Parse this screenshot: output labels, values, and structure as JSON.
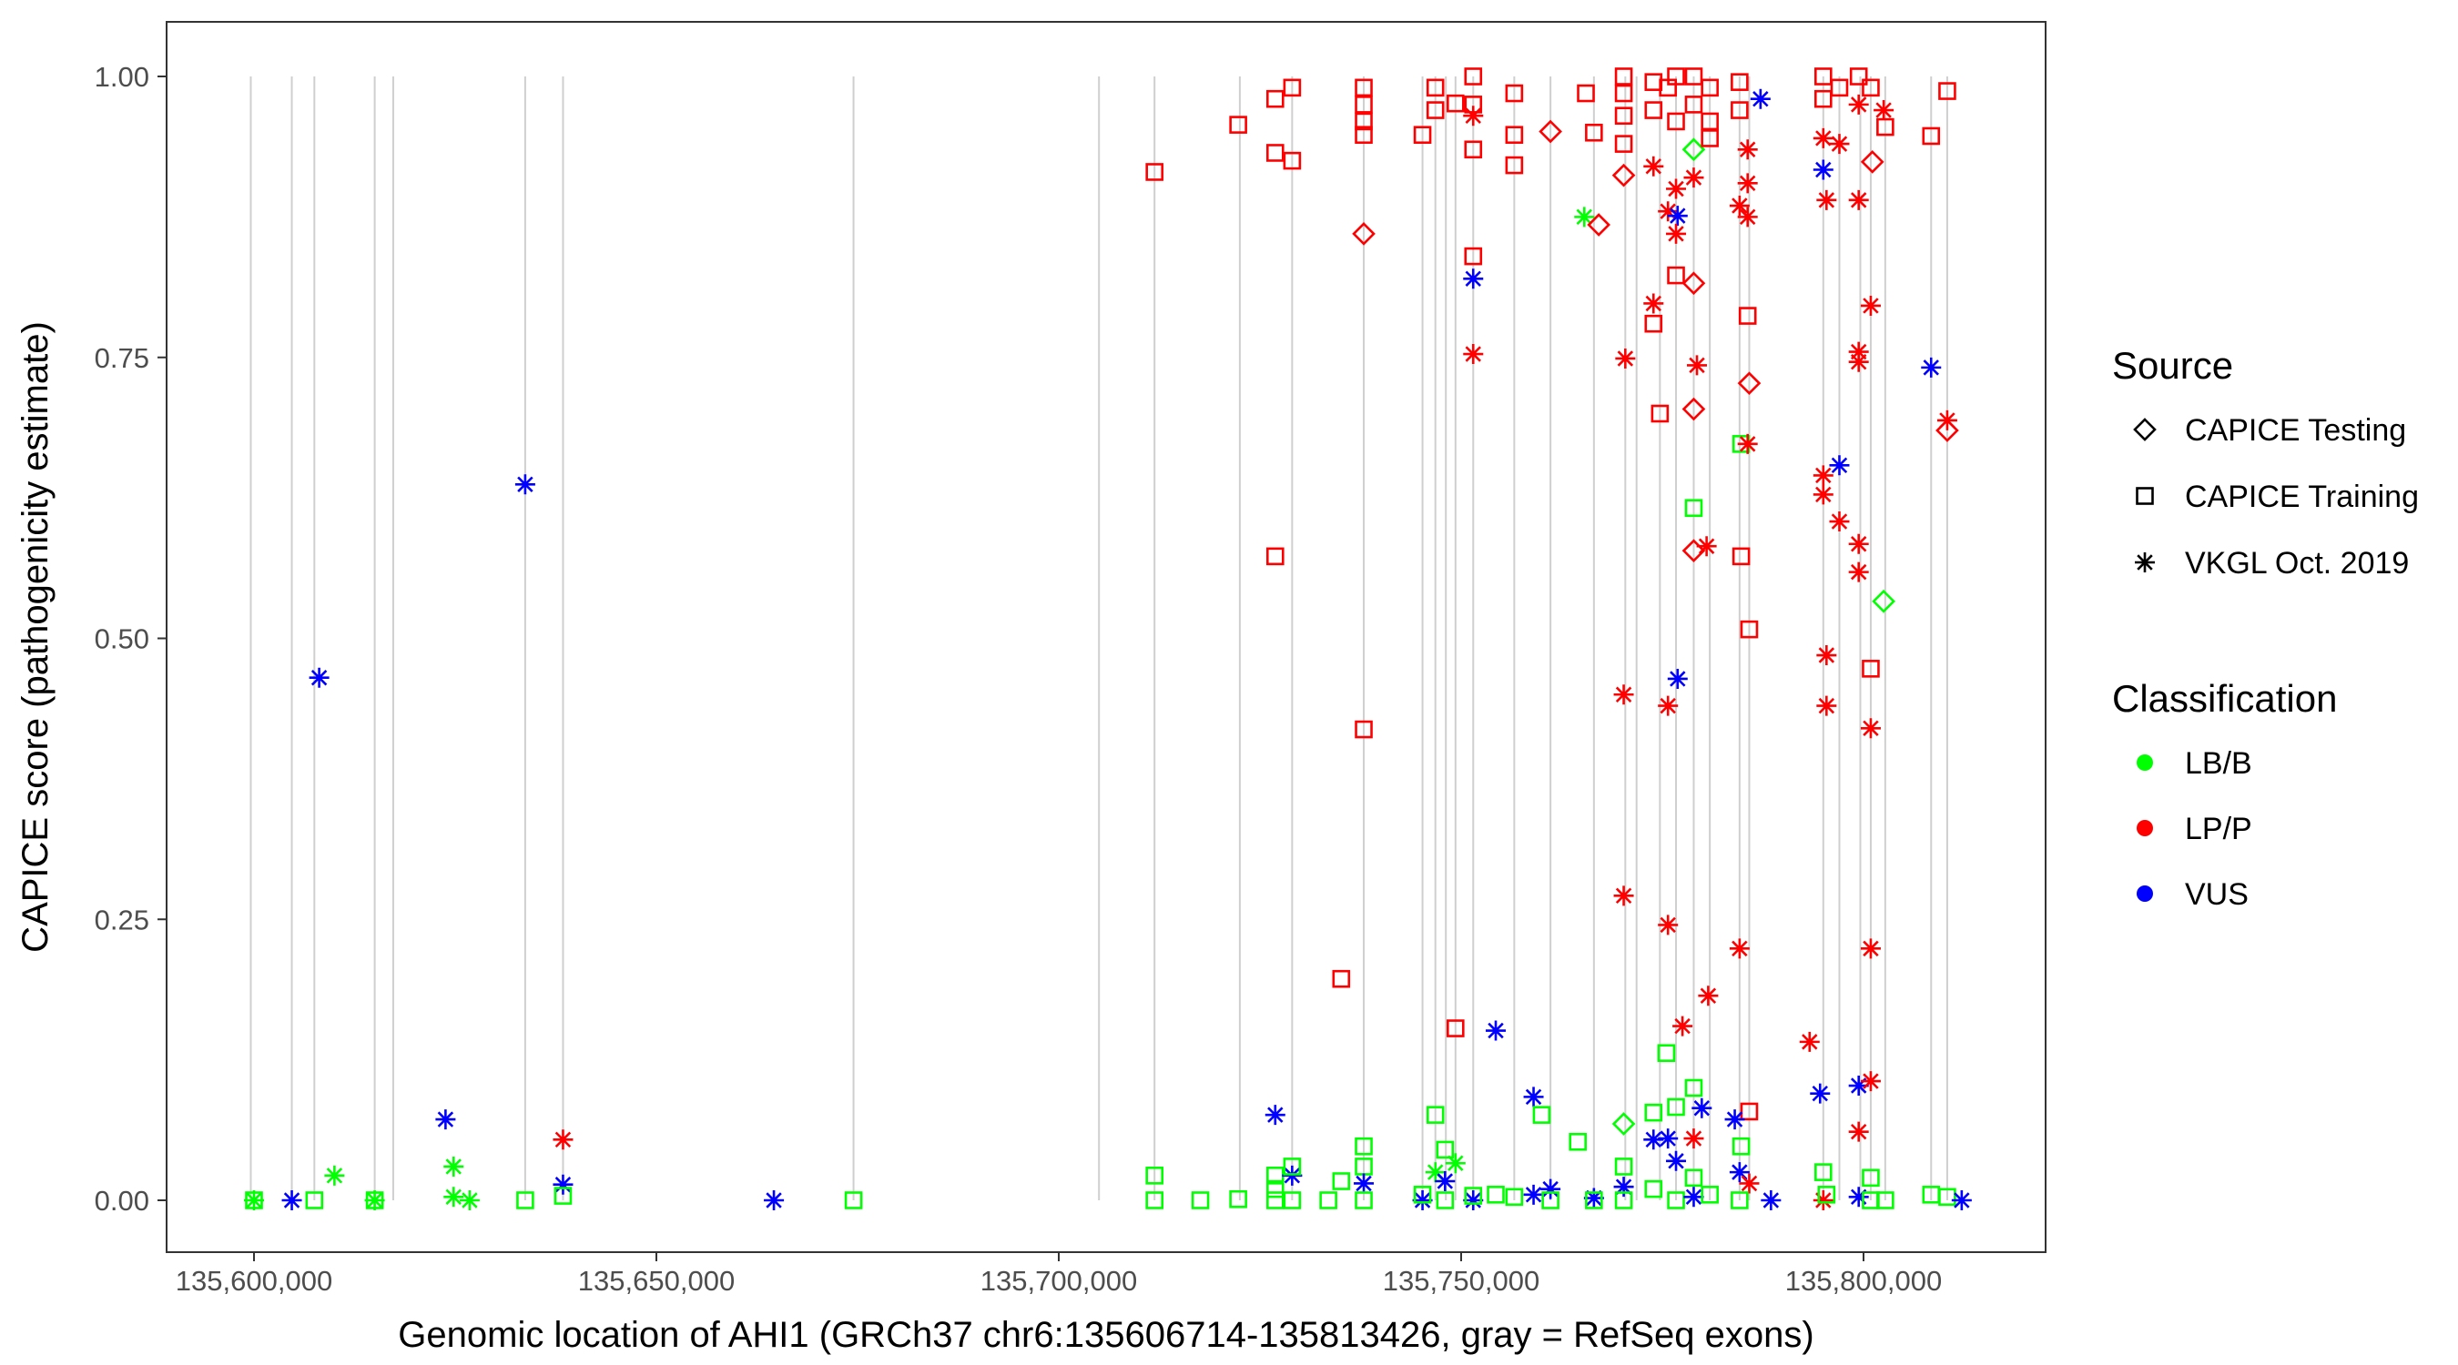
{
  "chart_data": {
    "type": "scatter",
    "xlabel": "Genomic location of AHI1 (GRCh37 chr6:135606714-135813426, gray = RefSeq exons)",
    "ylabel": "CAPICE score (pathogenicity estimate)",
    "xlim": [
      135593000,
      135817000
    ],
    "ylim": [
      -0.046,
      1.046
    ],
    "xticks": [
      135600000,
      135650000,
      135700000,
      135750000,
      135800000
    ],
    "xtick_labels": [
      "135,600,000",
      "135,650,000",
      "135,700,000",
      "135,750,000",
      "135,800,000"
    ],
    "yticks": [
      0,
      0.25,
      0.5,
      0.75,
      1.0
    ],
    "ytick_labels": [
      "0.00",
      "0.25",
      "0.50",
      "0.75",
      "1.00"
    ],
    "grid": false,
    "legend_placement": "right",
    "legend": {
      "source_title": "Source",
      "sources": [
        {
          "key": "Testing",
          "label": "CAPICE Testing",
          "shape": "diamond"
        },
        {
          "key": "Training",
          "label": "CAPICE Training",
          "shape": "square"
        },
        {
          "key": "VKGL",
          "label": "VKGL Oct. 2019",
          "shape": "asterisk"
        }
      ],
      "class_title": "Classification",
      "classes": [
        {
          "key": "B",
          "label": "LB/B",
          "color": "#00ff00"
        },
        {
          "key": "P",
          "label": "LP/P",
          "color": "#ff0000"
        },
        {
          "key": "U",
          "label": "VUS",
          "color": "#0000ff"
        }
      ]
    },
    "exons": [
      135599600,
      135604700,
      135607500,
      135615000,
      135617300,
      135633700,
      135638400,
      135674500,
      135705000,
      135711900,
      135722500,
      135729000,
      135737900,
      135745200,
      135746800,
      135748100,
      135749300,
      135751500,
      135756600,
      135761100,
      135766500,
      135770400,
      135771800,
      135774700,
      135776700,
      135778900,
      135780900,
      135784600,
      135785800,
      135795000,
      135797000,
      135799600,
      135800900,
      135802700,
      135808400,
      135810400
    ],
    "points_format": [
      "position",
      "score",
      "source",
      "classification"
    ],
    "points": [
      [
        135600000,
        0,
        "Training",
        "B"
      ],
      [
        135600000,
        0,
        "VKGL",
        "B"
      ],
      [
        135604700,
        0,
        "VKGL",
        "U"
      ],
      [
        135607500,
        0,
        "Training",
        "B"
      ],
      [
        135608100,
        0.465,
        "VKGL",
        "U"
      ],
      [
        135610000,
        0.022,
        "VKGL",
        "B"
      ],
      [
        135615000,
        0,
        "Training",
        "B"
      ],
      [
        135615000,
        0,
        "VKGL",
        "B"
      ],
      [
        135623800,
        0.072,
        "VKGL",
        "U"
      ],
      [
        135624800,
        0.03,
        "VKGL",
        "B"
      ],
      [
        135624800,
        0.003,
        "VKGL",
        "B"
      ],
      [
        135626800,
        0,
        "VKGL",
        "B"
      ],
      [
        135633700,
        0.637,
        "VKGL",
        "U"
      ],
      [
        135633700,
        0,
        "Training",
        "B"
      ],
      [
        135638400,
        0.054,
        "VKGL",
        "P"
      ],
      [
        135638400,
        0.014,
        "VKGL",
        "U"
      ],
      [
        135638400,
        0.004,
        "Training",
        "B"
      ],
      [
        135664600,
        0,
        "VKGL",
        "U"
      ],
      [
        135674500,
        0,
        "Training",
        "B"
      ],
      [
        135711900,
        0.915,
        "Training",
        "P"
      ],
      [
        135711900,
        0.022,
        "Training",
        "B"
      ],
      [
        135711900,
        0,
        "Training",
        "B"
      ],
      [
        135717600,
        0,
        "Training",
        "B"
      ],
      [
        135722300,
        0.957,
        "Training",
        "P"
      ],
      [
        135722300,
        0.001,
        "Training",
        "B"
      ],
      [
        135726900,
        0.98,
        "Training",
        "P"
      ],
      [
        135726900,
        0.932,
        "Training",
        "P"
      ],
      [
        135726900,
        0.573,
        "Training",
        "P"
      ],
      [
        135726900,
        0.076,
        "VKGL",
        "U"
      ],
      [
        135726900,
        0.022,
        "Training",
        "B"
      ],
      [
        135726900,
        0.01,
        "Training",
        "B"
      ],
      [
        135726900,
        0,
        "Training",
        "B"
      ],
      [
        135729000,
        0.99,
        "Training",
        "P"
      ],
      [
        135729000,
        0.925,
        "Training",
        "P"
      ],
      [
        135729000,
        0.022,
        "VKGL",
        "U"
      ],
      [
        135729000,
        0.03,
        "Training",
        "B"
      ],
      [
        135729000,
        0,
        "Training",
        "B"
      ],
      [
        135735100,
        0.197,
        "Training",
        "P"
      ],
      [
        135735100,
        0.017,
        "Training",
        "B"
      ],
      [
        135733500,
        0,
        "Training",
        "B"
      ],
      [
        135737900,
        0.86,
        "Testing",
        "P"
      ],
      [
        135737900,
        0.99,
        "Training",
        "P"
      ],
      [
        135737900,
        0.975,
        "Training",
        "P"
      ],
      [
        135737900,
        0.96,
        "Training",
        "P"
      ],
      [
        135737900,
        0.948,
        "Training",
        "P"
      ],
      [
        135737900,
        0.419,
        "Training",
        "P"
      ],
      [
        135737900,
        0.048,
        "Training",
        "B"
      ],
      [
        135737900,
        0.03,
        "Training",
        "B"
      ],
      [
        135737900,
        0.015,
        "VKGL",
        "U"
      ],
      [
        135737900,
        0,
        "Training",
        "B"
      ],
      [
        135745200,
        0.948,
        "Training",
        "P"
      ],
      [
        135745200,
        0,
        "VKGL",
        "U"
      ],
      [
        135745200,
        0.005,
        "Training",
        "B"
      ],
      [
        135746800,
        0.076,
        "Training",
        "B"
      ],
      [
        135746800,
        0.025,
        "VKGL",
        "B"
      ],
      [
        135746800,
        0.99,
        "Training",
        "P"
      ],
      [
        135746800,
        0.97,
        "Training",
        "P"
      ],
      [
        135748000,
        0.045,
        "Training",
        "B"
      ],
      [
        135748000,
        0.017,
        "VKGL",
        "U"
      ],
      [
        135748000,
        0,
        "Training",
        "B"
      ],
      [
        135749300,
        0.153,
        "Training",
        "P"
      ],
      [
        135749300,
        0.033,
        "VKGL",
        "B"
      ],
      [
        135749300,
        0.976,
        "Training",
        "P"
      ],
      [
        135751500,
        0.82,
        "VKGL",
        "U"
      ],
      [
        135751500,
        0.753,
        "VKGL",
        "P"
      ],
      [
        135751500,
        0.84,
        "Training",
        "P"
      ],
      [
        135751500,
        0.935,
        "Training",
        "P"
      ],
      [
        135751500,
        1.0,
        "Training",
        "P"
      ],
      [
        135751500,
        0.975,
        "Training",
        "P"
      ],
      [
        135751500,
        0.965,
        "VKGL",
        "P"
      ],
      [
        135751500,
        0,
        "VKGL",
        "U"
      ],
      [
        135751500,
        0.004,
        "Training",
        "B"
      ],
      [
        135754300,
        0.151,
        "VKGL",
        "U"
      ],
      [
        135754300,
        0.005,
        "Training",
        "B"
      ],
      [
        135756600,
        0.921,
        "Training",
        "P"
      ],
      [
        135756600,
        0.948,
        "Training",
        "P"
      ],
      [
        135756600,
        0.985,
        "Training",
        "P"
      ],
      [
        135756600,
        0.003,
        "Training",
        "B"
      ],
      [
        135759000,
        0.092,
        "VKGL",
        "U"
      ],
      [
        135760000,
        0.076,
        "Training",
        "B"
      ],
      [
        135759000,
        0.005,
        "VKGL",
        "U"
      ],
      [
        135761100,
        0.951,
        "Testing",
        "P"
      ],
      [
        135761100,
        0.01,
        "VKGL",
        "U"
      ],
      [
        135761100,
        0,
        "Training",
        "B"
      ],
      [
        135765300,
        0.875,
        "VKGL",
        "B"
      ],
      [
        135767100,
        0.868,
        "Testing",
        "P"
      ],
      [
        135766500,
        0.95,
        "Training",
        "P"
      ],
      [
        135765500,
        0.985,
        "Training",
        "P"
      ],
      [
        135764500,
        0.052,
        "Training",
        "B"
      ],
      [
        135766500,
        0.002,
        "VKGL",
        "U"
      ],
      [
        135766500,
        0,
        "Training",
        "B"
      ],
      [
        135770200,
        0.912,
        "Testing",
        "P"
      ],
      [
        135770400,
        0.749,
        "VKGL",
        "P"
      ],
      [
        135770200,
        0.45,
        "VKGL",
        "P"
      ],
      [
        135770200,
        0.271,
        "VKGL",
        "P"
      ],
      [
        135770200,
        0.068,
        "Testing",
        "B"
      ],
      [
        135770200,
        1.0,
        "Training",
        "P"
      ],
      [
        135770200,
        0.985,
        "Training",
        "P"
      ],
      [
        135770200,
        0.965,
        "Training",
        "P"
      ],
      [
        135770200,
        0.94,
        "Training",
        "P"
      ],
      [
        135770200,
        0.03,
        "Training",
        "B"
      ],
      [
        135770200,
        0.012,
        "VKGL",
        "U"
      ],
      [
        135770200,
        0,
        "Training",
        "B"
      ],
      [
        135773900,
        0.798,
        "VKGL",
        "P"
      ],
      [
        135773900,
        0.78,
        "Training",
        "P"
      ],
      [
        135774700,
        0.7,
        "Training",
        "P"
      ],
      [
        135773900,
        0.054,
        "VKGL",
        "U"
      ],
      [
        135775500,
        0.131,
        "Training",
        "B"
      ],
      [
        135773900,
        0.995,
        "Training",
        "P"
      ],
      [
        135773900,
        0.97,
        "Training",
        "P"
      ],
      [
        135773900,
        0.92,
        "VKGL",
        "P"
      ],
      [
        135773900,
        0.078,
        "Training",
        "B"
      ],
      [
        135773900,
        0.01,
        "Training",
        "B"
      ],
      [
        135775700,
        0.44,
        "VKGL",
        "P"
      ],
      [
        135775700,
        0.245,
        "VKGL",
        "P"
      ],
      [
        135775700,
        0.055,
        "VKGL",
        "U"
      ],
      [
        135775700,
        0.88,
        "VKGL",
        "P"
      ],
      [
        135775700,
        0.99,
        "Training",
        "P"
      ],
      [
        135776900,
        0.464,
        "VKGL",
        "U"
      ],
      [
        135776900,
        0.876,
        "VKGL",
        "U"
      ],
      [
        135776700,
        0.823,
        "Training",
        "P"
      ],
      [
        135776700,
        0.86,
        "VKGL",
        "P"
      ],
      [
        135776700,
        0.9,
        "VKGL",
        "P"
      ],
      [
        135776700,
        0.96,
        "Training",
        "P"
      ],
      [
        135776700,
        1.0,
        "Training",
        "P"
      ],
      [
        135776700,
        0.083,
        "Training",
        "B"
      ],
      [
        135776700,
        0.035,
        "VKGL",
        "U"
      ],
      [
        135776700,
        0,
        "Training",
        "B"
      ],
      [
        135778900,
        0.816,
        "Testing",
        "P"
      ],
      [
        135778900,
        0.704,
        "Testing",
        "P"
      ],
      [
        135778900,
        0.616,
        "Training",
        "B"
      ],
      [
        135778900,
        0.578,
        "Testing",
        "P"
      ],
      [
        135779300,
        0.743,
        "VKGL",
        "P"
      ],
      [
        135777500,
        0.155,
        "VKGL",
        "P"
      ],
      [
        135780700,
        0.182,
        "VKGL",
        "P"
      ],
      [
        135778900,
        0.055,
        "VKGL",
        "P"
      ],
      [
        135779900,
        0.082,
        "VKGL",
        "U"
      ],
      [
        135780500,
        0.582,
        "VKGL",
        "P"
      ],
      [
        135778900,
        0.935,
        "Testing",
        "B"
      ],
      [
        135778900,
        0.975,
        "Training",
        "P"
      ],
      [
        135778900,
        1.0,
        "Training",
        "P"
      ],
      [
        135778900,
        0.91,
        "VKGL",
        "P"
      ],
      [
        135778900,
        0.1,
        "Training",
        "B"
      ],
      [
        135778900,
        0.02,
        "Training",
        "B"
      ],
      [
        135778900,
        0.003,
        "VKGL",
        "U"
      ],
      [
        135780900,
        0.99,
        "Training",
        "P"
      ],
      [
        135780900,
        0.96,
        "Training",
        "P"
      ],
      [
        135780900,
        0.945,
        "Training",
        "P"
      ],
      [
        135780900,
        0.005,
        "Training",
        "B"
      ],
      [
        135784800,
        0.673,
        "Training",
        "B"
      ],
      [
        135785600,
        0.673,
        "VKGL",
        "P"
      ],
      [
        135784800,
        0.573,
        "Training",
        "P"
      ],
      [
        135785800,
        0.508,
        "Training",
        "P"
      ],
      [
        135785800,
        0.727,
        "Testing",
        "P"
      ],
      [
        135785600,
        0.787,
        "Training",
        "P"
      ],
      [
        135784600,
        0.224,
        "VKGL",
        "P"
      ],
      [
        135785800,
        0.079,
        "Training",
        "P"
      ],
      [
        135784000,
        0.072,
        "VKGL",
        "U"
      ],
      [
        135784600,
        0.025,
        "VKGL",
        "U"
      ],
      [
        135784600,
        0.995,
        "Training",
        "P"
      ],
      [
        135784600,
        0.97,
        "Training",
        "P"
      ],
      [
        135784600,
        0.885,
        "VKGL",
        "P"
      ],
      [
        135785600,
        0.905,
        "VKGL",
        "P"
      ],
      [
        135785600,
        0.875,
        "VKGL",
        "P"
      ],
      [
        135785600,
        0.935,
        "VKGL",
        "P"
      ],
      [
        135784800,
        0.048,
        "Training",
        "B"
      ],
      [
        135785800,
        0.015,
        "VKGL",
        "P"
      ],
      [
        135784600,
        0,
        "Training",
        "B"
      ],
      [
        135787200,
        0.98,
        "VKGL",
        "U"
      ],
      [
        135788500,
        0,
        "VKGL",
        "U"
      ],
      [
        135793300,
        0.141,
        "VKGL",
        "P"
      ],
      [
        135795000,
        0.917,
        "VKGL",
        "U"
      ],
      [
        135795000,
        0.645,
        "VKGL",
        "P"
      ],
      [
        135795000,
        0.628,
        "VKGL",
        "P"
      ],
      [
        135795400,
        0.485,
        "VKGL",
        "P"
      ],
      [
        135795400,
        0.44,
        "VKGL",
        "P"
      ],
      [
        135795400,
        0.89,
        "VKGL",
        "P"
      ],
      [
        135794600,
        0.095,
        "VKGL",
        "U"
      ],
      [
        135795000,
        0,
        "VKGL",
        "P"
      ],
      [
        135795000,
        1.0,
        "Training",
        "P"
      ],
      [
        135795000,
        0.98,
        "Training",
        "P"
      ],
      [
        135795000,
        0.945,
        "VKGL",
        "P"
      ],
      [
        135795000,
        0.025,
        "Training",
        "B"
      ],
      [
        135795400,
        0.005,
        "Training",
        "B"
      ],
      [
        135797000,
        0.654,
        "VKGL",
        "U"
      ],
      [
        135797000,
        0.604,
        "VKGL",
        "P"
      ],
      [
        135797000,
        0.99,
        "Training",
        "P"
      ],
      [
        135797000,
        0.94,
        "VKGL",
        "P"
      ],
      [
        135799400,
        0.89,
        "VKGL",
        "P"
      ],
      [
        135799400,
        0.755,
        "VKGL",
        "P"
      ],
      [
        135799400,
        0.746,
        "VKGL",
        "P"
      ],
      [
        135799400,
        0.584,
        "VKGL",
        "P"
      ],
      [
        135799400,
        0.559,
        "VKGL",
        "P"
      ],
      [
        135799400,
        0.061,
        "VKGL",
        "P"
      ],
      [
        135799400,
        0.102,
        "VKGL",
        "U"
      ],
      [
        135799400,
        1.0,
        "Training",
        "P"
      ],
      [
        135799400,
        0.975,
        "VKGL",
        "P"
      ],
      [
        135799400,
        0.003,
        "VKGL",
        "U"
      ],
      [
        135800900,
        0.796,
        "VKGL",
        "P"
      ],
      [
        135800900,
        0.473,
        "Training",
        "P"
      ],
      [
        135800900,
        0.42,
        "VKGL",
        "P"
      ],
      [
        135800900,
        0.224,
        "VKGL",
        "P"
      ],
      [
        135800900,
        0.106,
        "VKGL",
        "P"
      ],
      [
        135801100,
        0.924,
        "Testing",
        "P"
      ],
      [
        135800900,
        0.99,
        "Training",
        "P"
      ],
      [
        135800900,
        0.02,
        "Training",
        "B"
      ],
      [
        135800900,
        0,
        "Training",
        "B"
      ],
      [
        135802500,
        0.533,
        "Testing",
        "B"
      ],
      [
        135802500,
        0.97,
        "VKGL",
        "P"
      ],
      [
        135802700,
        0.955,
        "Training",
        "P"
      ],
      [
        135802700,
        0,
        "Training",
        "B"
      ],
      [
        135808400,
        0.741,
        "VKGL",
        "U"
      ],
      [
        135808400,
        0.947,
        "Training",
        "P"
      ],
      [
        135808400,
        0.005,
        "Training",
        "B"
      ],
      [
        135810400,
        0.694,
        "VKGL",
        "P"
      ],
      [
        135810400,
        0.685,
        "Testing",
        "P"
      ],
      [
        135810400,
        0.987,
        "Training",
        "P"
      ],
      [
        135810400,
        0.003,
        "Training",
        "B"
      ],
      [
        135812200,
        0,
        "VKGL",
        "U"
      ]
    ]
  }
}
